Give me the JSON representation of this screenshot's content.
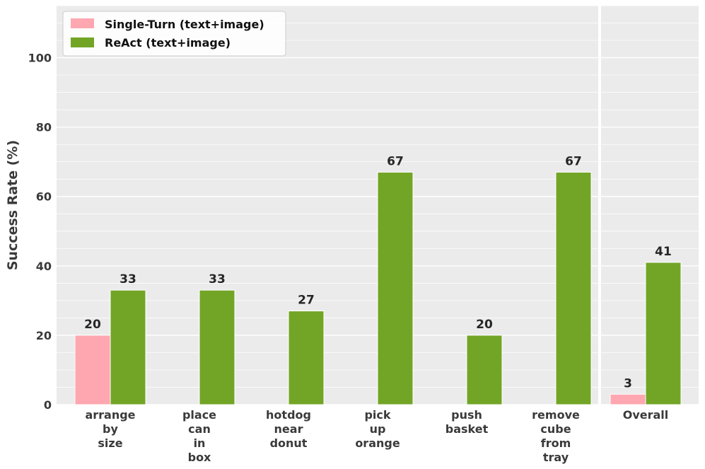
{
  "chart_data": {
    "type": "bar",
    "ylabel": "Success Rate (%)",
    "ylim": [
      0,
      115
    ],
    "yticks": [
      0,
      20,
      40,
      60,
      80,
      100
    ],
    "grid": true,
    "legend_position": "top-left",
    "categories": [
      [
        "arrange",
        "by",
        "size"
      ],
      [
        "place",
        "can",
        "in",
        "box"
      ],
      [
        "hotdog",
        "near",
        "donut"
      ],
      [
        "pick",
        "up",
        "orange"
      ],
      [
        "push",
        "basket"
      ],
      [
        "remove",
        "cube",
        "from",
        "tray"
      ],
      [
        "Overall"
      ]
    ],
    "series": [
      {
        "name": "Single-Turn (text+image)",
        "color": "#ffa7b0",
        "values": [
          20,
          0,
          0,
          0,
          0,
          0,
          3
        ]
      },
      {
        "name": "ReAct (text+image)",
        "color": "#72a526",
        "values": [
          33,
          33,
          27,
          67,
          20,
          67,
          41
        ]
      }
    ]
  }
}
